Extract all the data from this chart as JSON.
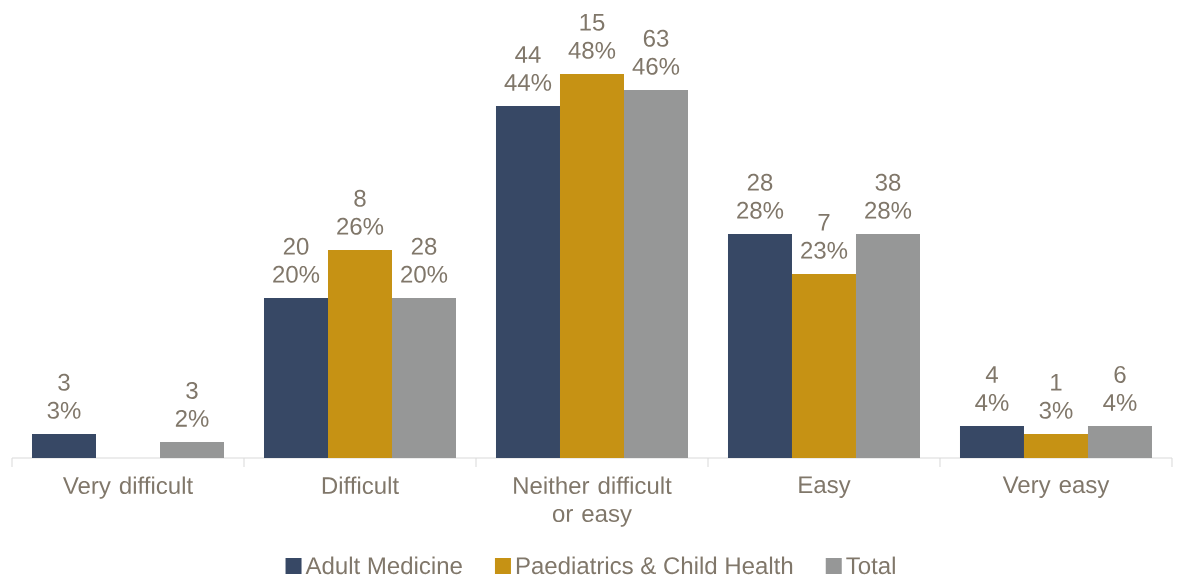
{
  "chart_data": {
    "type": "bar",
    "categories": [
      "Very difficult",
      "Difficult",
      "Neither difficult or easy",
      "Easy",
      "Very easy"
    ],
    "series": [
      {
        "name": "Adult Medicine",
        "color": "#374865",
        "values": [
          3,
          20,
          44,
          28,
          4
        ],
        "value_labels": [
          "3 3%",
          "20 20%",
          "44 44%",
          "28 28%",
          "4 4%"
        ]
      },
      {
        "name": "Paediatrics & Child Health",
        "color": "#c69214",
        "values": [
          null,
          26,
          48,
          23,
          3
        ],
        "value_labels": [
          null,
          "8 26%",
          "15 48%",
          "7 23%",
          "1 3%"
        ]
      },
      {
        "name": "Total",
        "color": "#969797",
        "values": [
          2,
          20,
          46,
          28,
          4
        ],
        "value_labels": [
          "3 2%",
          "28 20%",
          "63 46%",
          "38 28%",
          "6 4%"
        ]
      }
    ],
    "tick_labels": "x",
    "legend": "bottom"
  }
}
